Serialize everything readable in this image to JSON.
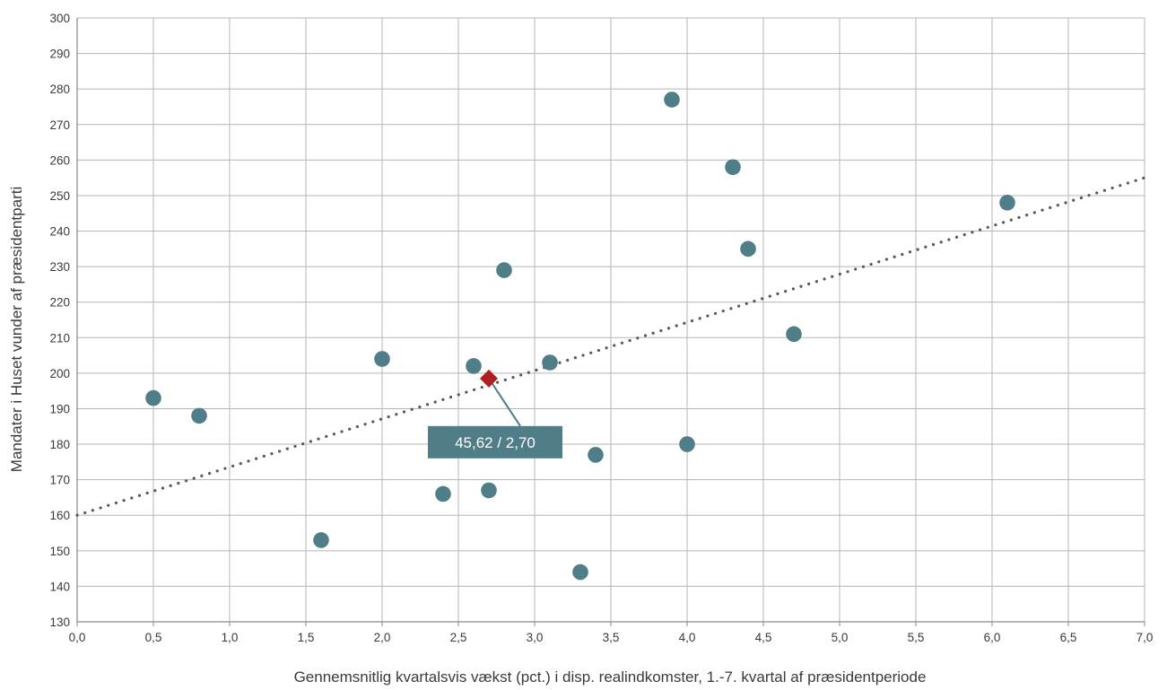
{
  "chart_data": {
    "type": "scatter",
    "xlabel": "Gennemsnitlig kvartalsvis vækst (pct.) i disp. realindkomster, 1.-7. kvartal af præsidentperiode",
    "ylabel": "Mandater i Huset vunder af præsidentparti",
    "xlim": [
      0,
      7
    ],
    "ylim": [
      130,
      300
    ],
    "x_ticks": [
      "0,0",
      "0,5",
      "1,0",
      "1,5",
      "2,0",
      "2,5",
      "3,0",
      "3,5",
      "4,0",
      "4,5",
      "5,0",
      "5,5",
      "6,0",
      "6,5",
      "7,0"
    ],
    "y_ticks": [
      "130",
      "140",
      "150",
      "160",
      "170",
      "180",
      "190",
      "200",
      "210",
      "220",
      "230",
      "240",
      "250",
      "260",
      "270",
      "280",
      "290",
      "300"
    ],
    "grid": true,
    "series": [
      {
        "points": [
          {
            "x": 0.5,
            "y": 193
          },
          {
            "x": 0.8,
            "y": 188
          },
          {
            "x": 1.6,
            "y": 153
          },
          {
            "x": 2.0,
            "y": 204
          },
          {
            "x": 2.4,
            "y": 166
          },
          {
            "x": 2.6,
            "y": 202
          },
          {
            "x": 2.7,
            "y": 167
          },
          {
            "x": 2.8,
            "y": 229
          },
          {
            "x": 3.1,
            "y": 203
          },
          {
            "x": 3.3,
            "y": 144
          },
          {
            "x": 3.4,
            "y": 177
          },
          {
            "x": 3.9,
            "y": 277
          },
          {
            "x": 4.0,
            "y": 180
          },
          {
            "x": 4.3,
            "y": 258
          },
          {
            "x": 4.4,
            "y": 235
          },
          {
            "x": 4.7,
            "y": 211
          },
          {
            "x": 6.1,
            "y": 248
          }
        ],
        "color": "#4f7d88"
      }
    ],
    "trendline": {
      "style": "dotted",
      "color": "#595959",
      "from": {
        "x": 0,
        "y": 160
      },
      "to": {
        "x": 7,
        "y": 255
      }
    },
    "highlight": {
      "x": 2.7,
      "y": 198.5,
      "color": "#b01e23",
      "marker": "diamond"
    },
    "annotation": {
      "text": "45,62 / 2,70",
      "background": "#4f7d88"
    }
  }
}
